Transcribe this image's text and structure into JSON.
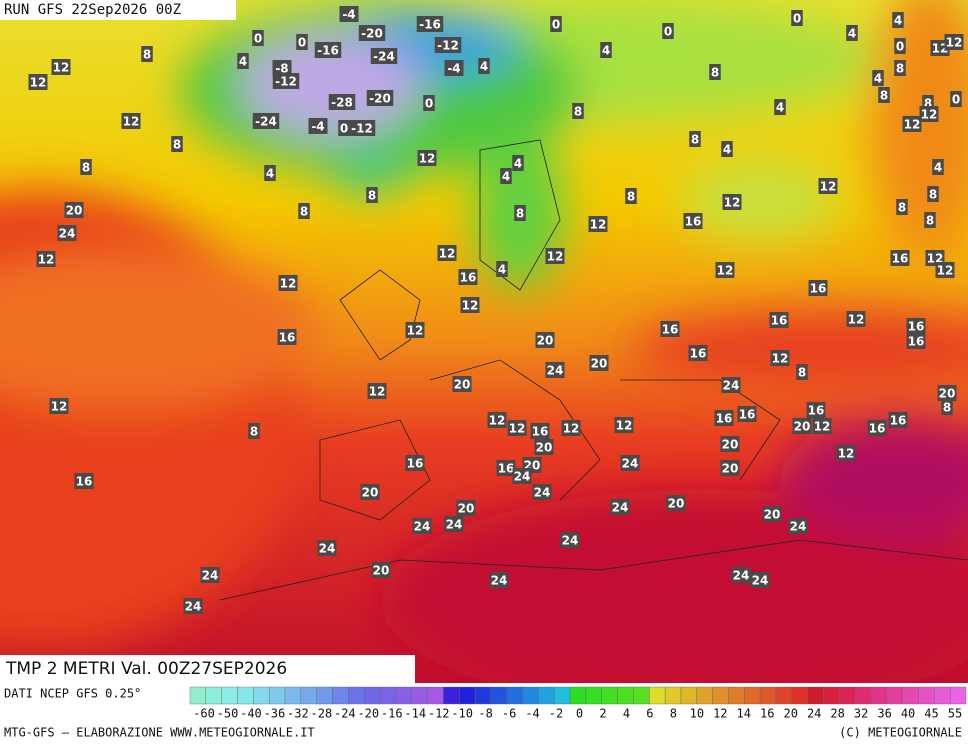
{
  "header": {
    "run": "RUN GFS 22Sep2026 00Z"
  },
  "map": {
    "title": "TMP 2 METRI Val. 00Z27SEP2026",
    "labels": [
      "-4",
      "0",
      "0",
      "-16",
      "-20",
      "-16",
      "-12",
      "-24",
      "-8",
      "-12",
      "-4",
      "4",
      "0",
      "4",
      "0",
      "0",
      "4",
      "4",
      "0",
      "12",
      "12",
      "4",
      "8",
      "12",
      "12",
      "12",
      "-28",
      "-20",
      "0",
      "-24",
      "-4",
      "0",
      "-12",
      "8",
      "4",
      "8",
      "8",
      "8",
      "12",
      "0",
      "12",
      "8",
      "4",
      "8",
      "4",
      "8",
      "12",
      "8",
      "4",
      "8",
      "4",
      "4",
      "4",
      "8",
      "12",
      "8",
      "12",
      "8",
      "8",
      "8",
      "8",
      "12",
      "16",
      "20",
      "24",
      "12",
      "12",
      "12",
      "4",
      "16",
      "12",
      "12",
      "16",
      "12",
      "12",
      "16",
      "12",
      "12",
      "16",
      "20",
      "16",
      "16",
      "16",
      "12",
      "16",
      "16",
      "12",
      "8",
      "12",
      "20",
      "24",
      "20",
      "24",
      "20",
      "8",
      "12",
      "8",
      "12",
      "12",
      "16",
      "12",
      "12",
      "16",
      "16",
      "16",
      "20",
      "12",
      "16",
      "16",
      "20",
      "20",
      "16",
      "16",
      "20",
      "24",
      "24",
      "20",
      "12",
      "16",
      "20",
      "24",
      "20",
      "24",
      "20",
      "24",
      "24",
      "20",
      "24",
      "24",
      "24",
      "24",
      "20",
      "24",
      "24",
      "24",
      "24"
    ]
  },
  "legend": {
    "source": "DATI NCEP GFS 0.25°",
    "ticks": [
      "-60",
      "-50",
      "-40",
      "-36",
      "-32",
      "-28",
      "-24",
      "-20",
      "-16",
      "-14",
      "-12",
      "-10",
      "-8",
      "-6",
      "-4",
      "-2",
      "0",
      "2",
      "4",
      "6",
      "8",
      "10",
      "12",
      "14",
      "16",
      "20",
      "24",
      "28",
      "32",
      "36",
      "40",
      "45",
      "55"
    ]
  },
  "footer": {
    "left": "MTG-GFS — ELABORAZIONE WWW.METEOGIORNALE.IT",
    "right": "(C) METEOGIORNALE"
  }
}
